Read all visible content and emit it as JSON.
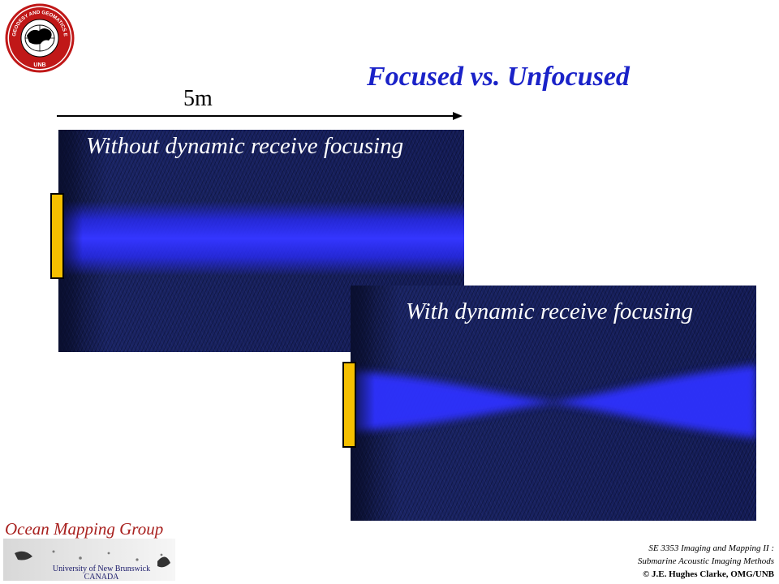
{
  "title": "Focused vs. Unfocused",
  "scale_label": "5m",
  "panels": {
    "unfocused": {
      "label": "Without dynamic receive focusing"
    },
    "focused": {
      "label": "With dynamic receive focusing"
    }
  },
  "logo_seal": {
    "ring_text": "GEODESY AND GEOMATICS ENGINEERING",
    "bottom_text": "UNB"
  },
  "footer": {
    "group_name": "Ocean Mapping Group",
    "institution_line1": "University of New Brunswick",
    "institution_line2": "CANADA",
    "course_line1": "SE 3353 Imaging and Mapping II :",
    "course_line2": "Submarine Acoustic Imaging Methods",
    "copyright": "© J.E. Hughes Clarke, OMG/UNB"
  },
  "colors": {
    "title": "#1a22c8",
    "beam": "#2a2cff",
    "panel_bg": "#121a50",
    "transducer": "#f5c000",
    "group_name": "#a8201e"
  }
}
